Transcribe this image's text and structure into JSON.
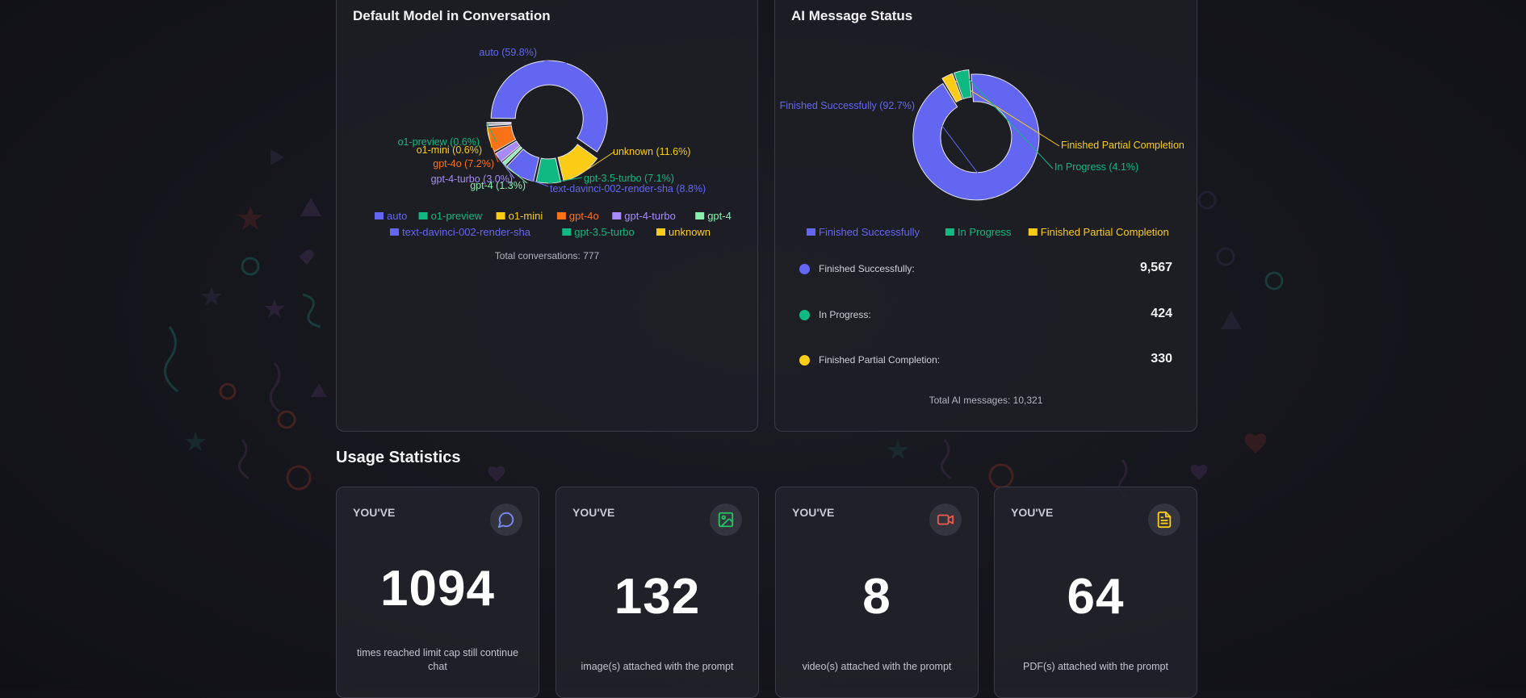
{
  "model_panel": {
    "title": "Default Model in Conversation",
    "total": "Total conversations: 777"
  },
  "status_panel": {
    "title": "AI Message Status",
    "stats": [
      {
        "label": "Finished Successfully:",
        "value": "9,567",
        "color": "#6366f1"
      },
      {
        "label": "In Progress:",
        "value": "424",
        "color": "#10b981"
      },
      {
        "label": "Finished Partial Completion:",
        "value": "330",
        "color": "#facc15"
      }
    ],
    "total": "Total AI messages: 10,321"
  },
  "usage": {
    "title": "Usage Statistics",
    "cards": [
      {
        "label": "YOU'VE",
        "value": "1094",
        "desc": "times reached limit cap still continue chat",
        "icon": "chat-bubble-icon",
        "icon_color": "#7c8cf8"
      },
      {
        "label": "YOU'VE",
        "value": "132",
        "desc": "image(s) attached with the prompt",
        "icon": "image-icon",
        "icon_color": "#22c55e"
      },
      {
        "label": "YOU'VE",
        "value": "8",
        "desc": "video(s) attached with the prompt",
        "icon": "video-camera-icon",
        "icon_color": "#ef5a4a"
      },
      {
        "label": "YOU'VE",
        "value": "64",
        "desc": "PDF(s) attached with the prompt",
        "icon": "pdf-document-icon",
        "icon_color": "#facc15"
      }
    ]
  },
  "chart_data": [
    {
      "type": "pie",
      "donut": true,
      "title": "Default Model in Conversation",
      "slices": [
        {
          "name": "auto",
          "value": 59.8,
          "label": "auto (59.8%)",
          "color": "#6366f1"
        },
        {
          "name": "unknown",
          "value": 11.6,
          "label": "unknown (11.6%)",
          "color": "#facc15"
        },
        {
          "name": "gpt-3.5-turbo",
          "value": 7.1,
          "label": "gpt-3.5-turbo (7.1%)",
          "color": "#10b981"
        },
        {
          "name": "text-davinci-002-render-sha",
          "value": 8.8,
          "label": "text-davinci-002-render-sha (8.8%)",
          "color": "#6366f1"
        },
        {
          "name": "gpt-4",
          "value": 1.3,
          "label": "gpt-4 (1.3%)",
          "color": "#86efac"
        },
        {
          "name": "gpt-4-turbo",
          "value": 3.0,
          "label": "gpt-4-turbo (3.0%)",
          "color": "#a78bfa"
        },
        {
          "name": "gpt-4o",
          "value": 7.2,
          "label": "gpt-4o (7.2%)",
          "color": "#f97316"
        },
        {
          "name": "o1-mini",
          "value": 0.6,
          "label": "o1-mini (0.6%)",
          "color": "#facc15"
        },
        {
          "name": "o1-preview",
          "value": 0.6,
          "label": "o1-preview (0.6%)",
          "color": "#10b981"
        }
      ],
      "legend": [
        "auto",
        "o1-preview",
        "o1-mini",
        "gpt-4o",
        "gpt-4-turbo",
        "gpt-4",
        "text-davinci-002-render-sha",
        "gpt-3.5-turbo",
        "unknown"
      ],
      "legend_colors": [
        "#6366f1",
        "#10b981",
        "#facc15",
        "#f97316",
        "#a78bfa",
        "#86efac",
        "#6366f1",
        "#10b981",
        "#facc15"
      ],
      "legend_position": "bottom"
    },
    {
      "type": "pie",
      "donut": true,
      "title": "AI Message Status",
      "slices": [
        {
          "name": "Finished Successfully",
          "value": 92.7,
          "label": "Finished Successfully (92.7%)",
          "color": "#6366f1"
        },
        {
          "name": "Finished Partial Completion",
          "value": 3.2,
          "label": "Finished Partial Completion",
          "color": "#facc15"
        },
        {
          "name": "In Progress",
          "value": 4.1,
          "label": "In Progress (4.1%)",
          "color": "#10b981"
        }
      ],
      "legend": [
        "Finished Successfully",
        "In Progress",
        "Finished Partial Completion"
      ],
      "legend_colors": [
        "#6366f1",
        "#10b981",
        "#facc15"
      ],
      "legend_position": "bottom"
    }
  ]
}
